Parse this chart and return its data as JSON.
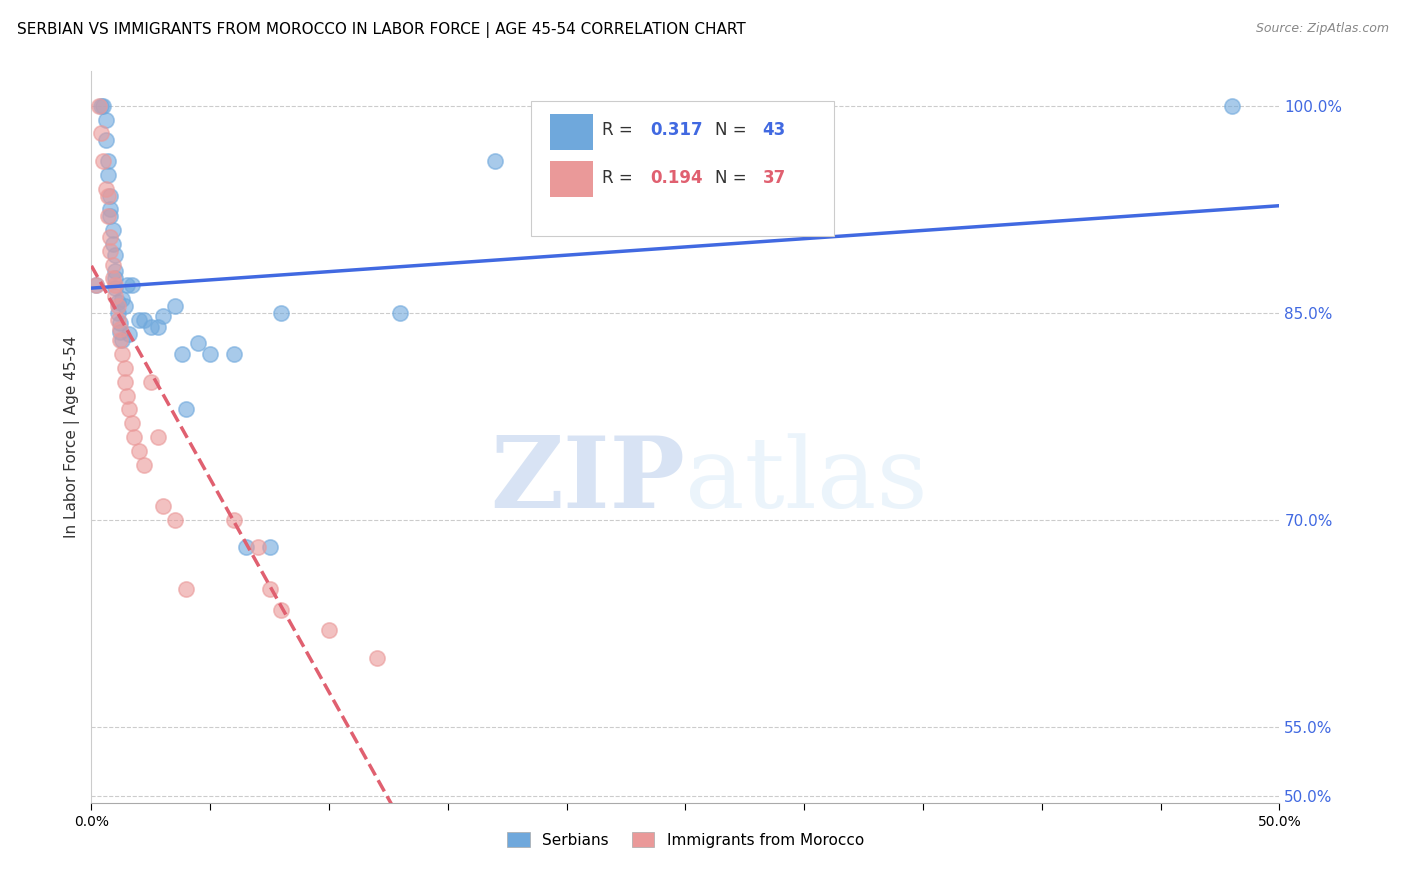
{
  "title": "SERBIAN VS IMMIGRANTS FROM MOROCCO IN LABOR FORCE | AGE 45-54 CORRELATION CHART",
  "source": "Source: ZipAtlas.com",
  "xlabel": "",
  "ylabel": "In Labor Force | Age 45-54",
  "legend_serbian": "Serbians",
  "legend_morocco": "Immigrants from Morocco",
  "r_serbian": 0.317,
  "n_serbian": 43,
  "r_morocco": 0.194,
  "n_morocco": 37,
  "xlim": [
    0.0,
    0.5
  ],
  "ylim": [
    0.495,
    1.025
  ],
  "yticks": [
    0.5,
    0.55,
    0.7,
    0.85,
    1.0
  ],
  "ytick_labels": [
    "50.0%",
    "55.0%",
    "70.0%",
    "85.0%",
    "100.0%"
  ],
  "xticks": [
    0.0,
    0.05,
    0.1,
    0.15,
    0.2,
    0.25,
    0.3,
    0.35,
    0.4,
    0.45,
    0.5
  ],
  "xtick_labels": [
    "0.0%",
    "",
    "",
    "",
    "",
    "",
    "",
    "",
    "",
    "",
    "50.0%"
  ],
  "color_serbian": "#6fa8dc",
  "color_morocco": "#ea9999",
  "trendline_serbian": "#4169e1",
  "trendline_morocco": "#e06070",
  "watermark_zip": "ZIP",
  "watermark_atlas": "atlas",
  "title_fontsize": 11,
  "label_fontsize": 10,
  "serbian_x": [
    0.002,
    0.004,
    0.005,
    0.006,
    0.006,
    0.007,
    0.007,
    0.008,
    0.008,
    0.008,
    0.009,
    0.009,
    0.01,
    0.01,
    0.01,
    0.01,
    0.011,
    0.011,
    0.012,
    0.012,
    0.013,
    0.013,
    0.014,
    0.015,
    0.016,
    0.017,
    0.02,
    0.022,
    0.025,
    0.028,
    0.03,
    0.035,
    0.038,
    0.04,
    0.045,
    0.05,
    0.06,
    0.065,
    0.075,
    0.08,
    0.13,
    0.17,
    0.48
  ],
  "serbian_y": [
    0.87,
    1.0,
    1.0,
    0.99,
    0.975,
    0.96,
    0.95,
    0.935,
    0.925,
    0.92,
    0.91,
    0.9,
    0.892,
    0.88,
    0.875,
    0.868,
    0.858,
    0.85,
    0.843,
    0.836,
    0.86,
    0.83,
    0.855,
    0.87,
    0.835,
    0.87,
    0.845,
    0.845,
    0.84,
    0.84,
    0.848,
    0.855,
    0.82,
    0.78,
    0.828,
    0.82,
    0.82,
    0.68,
    0.68,
    0.85,
    0.85,
    0.96,
    1.0
  ],
  "morocco_x": [
    0.002,
    0.003,
    0.004,
    0.005,
    0.006,
    0.007,
    0.007,
    0.008,
    0.008,
    0.009,
    0.009,
    0.01,
    0.01,
    0.011,
    0.011,
    0.012,
    0.012,
    0.013,
    0.014,
    0.014,
    0.015,
    0.016,
    0.017,
    0.018,
    0.02,
    0.022,
    0.025,
    0.028,
    0.03,
    0.035,
    0.04,
    0.06,
    0.07,
    0.075,
    0.08,
    0.1,
    0.12
  ],
  "morocco_y": [
    0.87,
    1.0,
    0.98,
    0.96,
    0.94,
    0.935,
    0.92,
    0.905,
    0.895,
    0.885,
    0.875,
    0.87,
    0.862,
    0.855,
    0.845,
    0.838,
    0.83,
    0.82,
    0.81,
    0.8,
    0.79,
    0.78,
    0.77,
    0.76,
    0.75,
    0.74,
    0.8,
    0.76,
    0.71,
    0.7,
    0.65,
    0.7,
    0.68,
    0.65,
    0.635,
    0.62,
    0.6
  ]
}
